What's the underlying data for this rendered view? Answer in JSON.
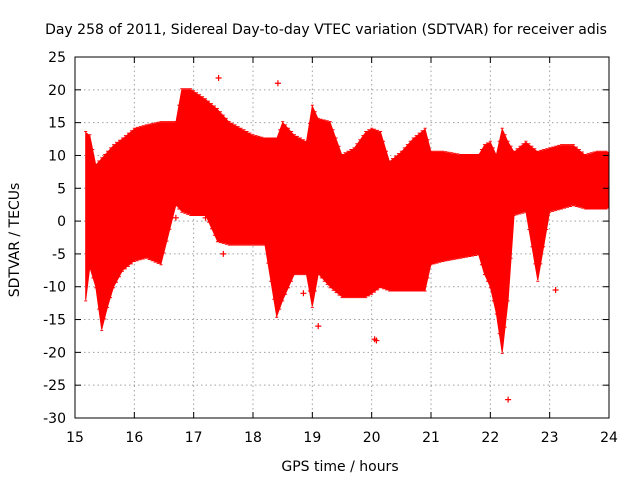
{
  "chart_data": {
    "type": "area",
    "title": "Day 258 of 2011, Sidereal Day-to-day VTEC variation (SDTVAR) for receiver adis",
    "xlabel": "GPS time / hours",
    "ylabel": "SDTVAR / TECUs",
    "xlim": [
      15,
      24
    ],
    "ylim": [
      -30,
      25
    ],
    "xticks": [
      "15",
      "16",
      "17",
      "18",
      "19",
      "20",
      "21",
      "22",
      "23",
      "24"
    ],
    "yticks": [
      "-30",
      "-25",
      "-20",
      "-15",
      "-10",
      "-5",
      "0",
      "5",
      "10",
      "15",
      "20",
      "25"
    ],
    "grid": true,
    "series_color": "#ff0000",
    "marker": "+",
    "series": [
      {
        "name": "SDTVAR envelope",
        "x": [
          15.18,
          15.25,
          15.35,
          15.45,
          15.55,
          15.65,
          15.8,
          16.0,
          16.2,
          16.45,
          16.7,
          16.8,
          16.95,
          17.2,
          17.4,
          17.6,
          17.8,
          18.0,
          18.2,
          18.4,
          18.5,
          18.7,
          18.9,
          19.0,
          19.1,
          19.3,
          19.5,
          19.7,
          19.9,
          20.0,
          20.15,
          20.3,
          20.5,
          20.7,
          20.9,
          21.0,
          21.2,
          21.5,
          21.8,
          21.9,
          22.0,
          22.1,
          22.2,
          22.3,
          22.4,
          22.6,
          22.8,
          23.0,
          23.2,
          23.4,
          23.6,
          23.8,
          24.0
        ],
        "upper": [
          13.5,
          13.0,
          8.5,
          9.5,
          10.5,
          11.5,
          12.5,
          14.0,
          14.5,
          15.0,
          15.0,
          20.0,
          20.0,
          18.5,
          17.0,
          15.0,
          14.0,
          13.0,
          12.5,
          12.5,
          15.0,
          13.0,
          12.0,
          17.5,
          15.5,
          15.0,
          10.0,
          11.0,
          13.5,
          14.0,
          13.5,
          9.0,
          10.5,
          12.5,
          14.0,
          10.5,
          10.5,
          10.0,
          10.0,
          11.5,
          12.0,
          10.0,
          14.0,
          12.0,
          10.5,
          12.0,
          10.5,
          11.0,
          11.5,
          11.5,
          10.0,
          10.5,
          10.5
        ],
        "lower": [
          -12.0,
          -7.0,
          -10.0,
          -16.5,
          -13.0,
          -10.0,
          -7.5,
          -6.0,
          -5.5,
          -6.5,
          2.5,
          1.5,
          1.0,
          1.0,
          -3.0,
          -3.5,
          -3.5,
          -3.5,
          -3.5,
          -14.5,
          -12.0,
          -8.0,
          -8.0,
          -13.0,
          -8.0,
          -10.0,
          -11.5,
          -11.5,
          -11.5,
          -11.0,
          -10.0,
          -10.5,
          -10.5,
          -10.5,
          -10.5,
          -6.5,
          -6.0,
          -5.5,
          -5.0,
          -8.0,
          -10.0,
          -14.0,
          -20.0,
          -12.0,
          1.0,
          1.5,
          -9.0,
          1.5,
          2.0,
          2.5,
          2.0,
          2.0,
          2.0
        ]
      }
    ],
    "outliers": [
      {
        "x": 17.42,
        "y": 21.8
      },
      {
        "x": 18.42,
        "y": 21.0
      },
      {
        "x": 17.2,
        "y": 0.5
      },
      {
        "x": 17.4,
        "y": -1.5
      },
      {
        "x": 17.5,
        "y": -5.0
      },
      {
        "x": 16.7,
        "y": 0.5
      },
      {
        "x": 18.85,
        "y": -11.0
      },
      {
        "x": 19.1,
        "y": -16.0
      },
      {
        "x": 20.05,
        "y": -18.0
      },
      {
        "x": 20.08,
        "y": -18.2
      },
      {
        "x": 22.3,
        "y": -27.2
      },
      {
        "x": 23.1,
        "y": -10.5
      },
      {
        "x": 22.1,
        "y": -9.5
      }
    ]
  }
}
